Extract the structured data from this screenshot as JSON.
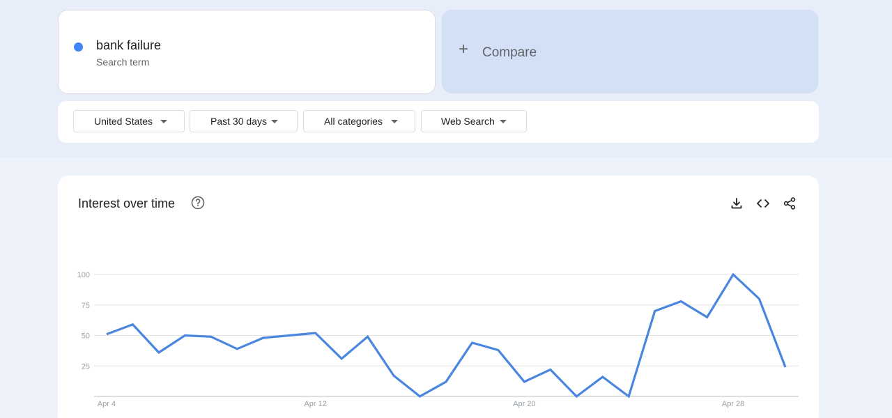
{
  "search_term": {
    "name": "bank failure",
    "subtitle": "Search term",
    "color": "#4285f4"
  },
  "compare": {
    "label": "Compare",
    "icon": "plus-icon"
  },
  "filters": [
    {
      "label": "United States",
      "icon": "caret-down-icon"
    },
    {
      "label": "Past 30 days",
      "icon": "caret-down-icon"
    },
    {
      "label": "All categories",
      "icon": "caret-down-icon"
    },
    {
      "label": "Web Search",
      "icon": "caret-down-icon"
    }
  ],
  "panel": {
    "title": "Interest over time",
    "help_icon": "help-circle-icon",
    "actions": [
      "download-icon",
      "embed-code-icon",
      "share-icon"
    ]
  },
  "chart_data": {
    "type": "line",
    "title": "Interest over time",
    "xlabel": "",
    "ylabel": "",
    "ylim": [
      0,
      100
    ],
    "yticks": [
      25,
      50,
      75,
      100
    ],
    "xtick_labels": [
      "Apr 4",
      "Apr 12",
      "Apr 20",
      "Apr 28"
    ],
    "xtick_index": [
      0,
      8,
      16,
      24
    ],
    "grid": true,
    "line_color": "#4a86e0",
    "series": [
      {
        "name": "bank failure",
        "x": [
          "Apr 4",
          "Apr 5",
          "Apr 6",
          "Apr 7",
          "Apr 8",
          "Apr 9",
          "Apr 10",
          "Apr 11",
          "Apr 12",
          "Apr 13",
          "Apr 14",
          "Apr 15",
          "Apr 16",
          "Apr 17",
          "Apr 18",
          "Apr 19",
          "Apr 20",
          "Apr 21",
          "Apr 22",
          "Apr 23",
          "Apr 24",
          "Apr 25",
          "Apr 26",
          "Apr 27",
          "Apr 28",
          "Apr 29",
          "Apr 30"
        ],
        "values": [
          51,
          59,
          36,
          50,
          49,
          39,
          48,
          50,
          52,
          31,
          49,
          17,
          0,
          12,
          44,
          38,
          12,
          22,
          0,
          16,
          0,
          70,
          78,
          65,
          100,
          80,
          24
        ]
      }
    ]
  }
}
